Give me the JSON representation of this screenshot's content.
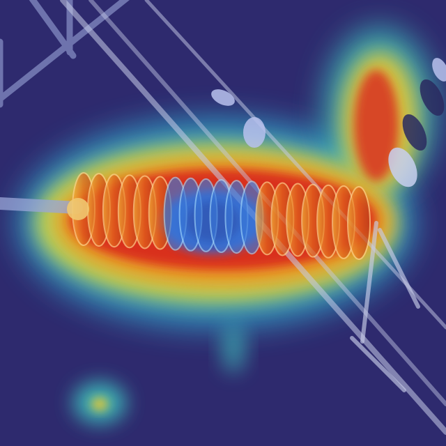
{
  "image": {
    "kind": "thermal-attention-heatmap-overlay",
    "subject": "porcelain-disc-insulator-string",
    "background_color": "#2e2a6e",
    "palette": {
      "cold": "#2b2a78",
      "cool": "#2f6bd8",
      "mid": "#3fd0c8",
      "warm": "#f2e23a",
      "hot": "#f07a1a",
      "hottest": "#d8261c"
    },
    "text": []
  }
}
